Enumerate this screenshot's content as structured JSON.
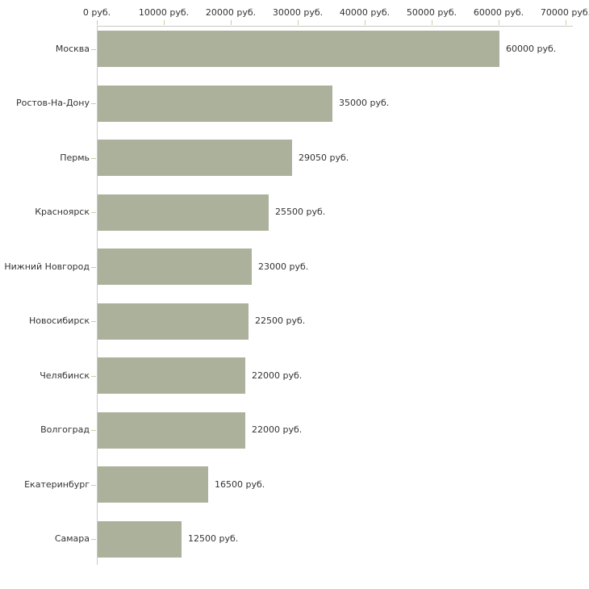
{
  "chart": {
    "colors": {
      "bar": "#acb19b",
      "axis_line": "#c9c9c9",
      "tick": "#cdcda5",
      "text": "#333333",
      "background": "#ffffff"
    }
  },
  "chart_data": {
    "type": "bar",
    "orientation": "horizontal",
    "title": "",
    "xlabel": "",
    "ylabel": "",
    "unit": "руб.",
    "xlim": [
      0,
      71000
    ],
    "grid": false,
    "legend": false,
    "categories": [
      "Москва",
      "Ростов-На-Дону",
      "Пермь",
      "Красноярск",
      "Нижний Новгород",
      "Новосибирск",
      "Челябинск",
      "Волгоград",
      "Екатеринбург",
      "Самара"
    ],
    "values": [
      60000,
      35000,
      29050,
      25500,
      23000,
      22500,
      22000,
      22000,
      16500,
      12500
    ],
    "value_labels": [
      "60000 руб.",
      "35000 руб.",
      "29050 руб.",
      "25500 руб.",
      "23000 руб.",
      "22500 руб.",
      "22000 руб.",
      "22000 руб.",
      "16500 руб.",
      "12500 руб."
    ],
    "x_ticks": {
      "values": [
        0,
        10000,
        20000,
        30000,
        40000,
        50000,
        60000,
        70000
      ],
      "labels": [
        "0 руб.",
        "10000 руб.",
        "20000 руб.",
        "30000 руб.",
        "40000 руб.",
        "50000 руб.",
        "60000 руб.",
        "70000 руб."
      ]
    }
  }
}
